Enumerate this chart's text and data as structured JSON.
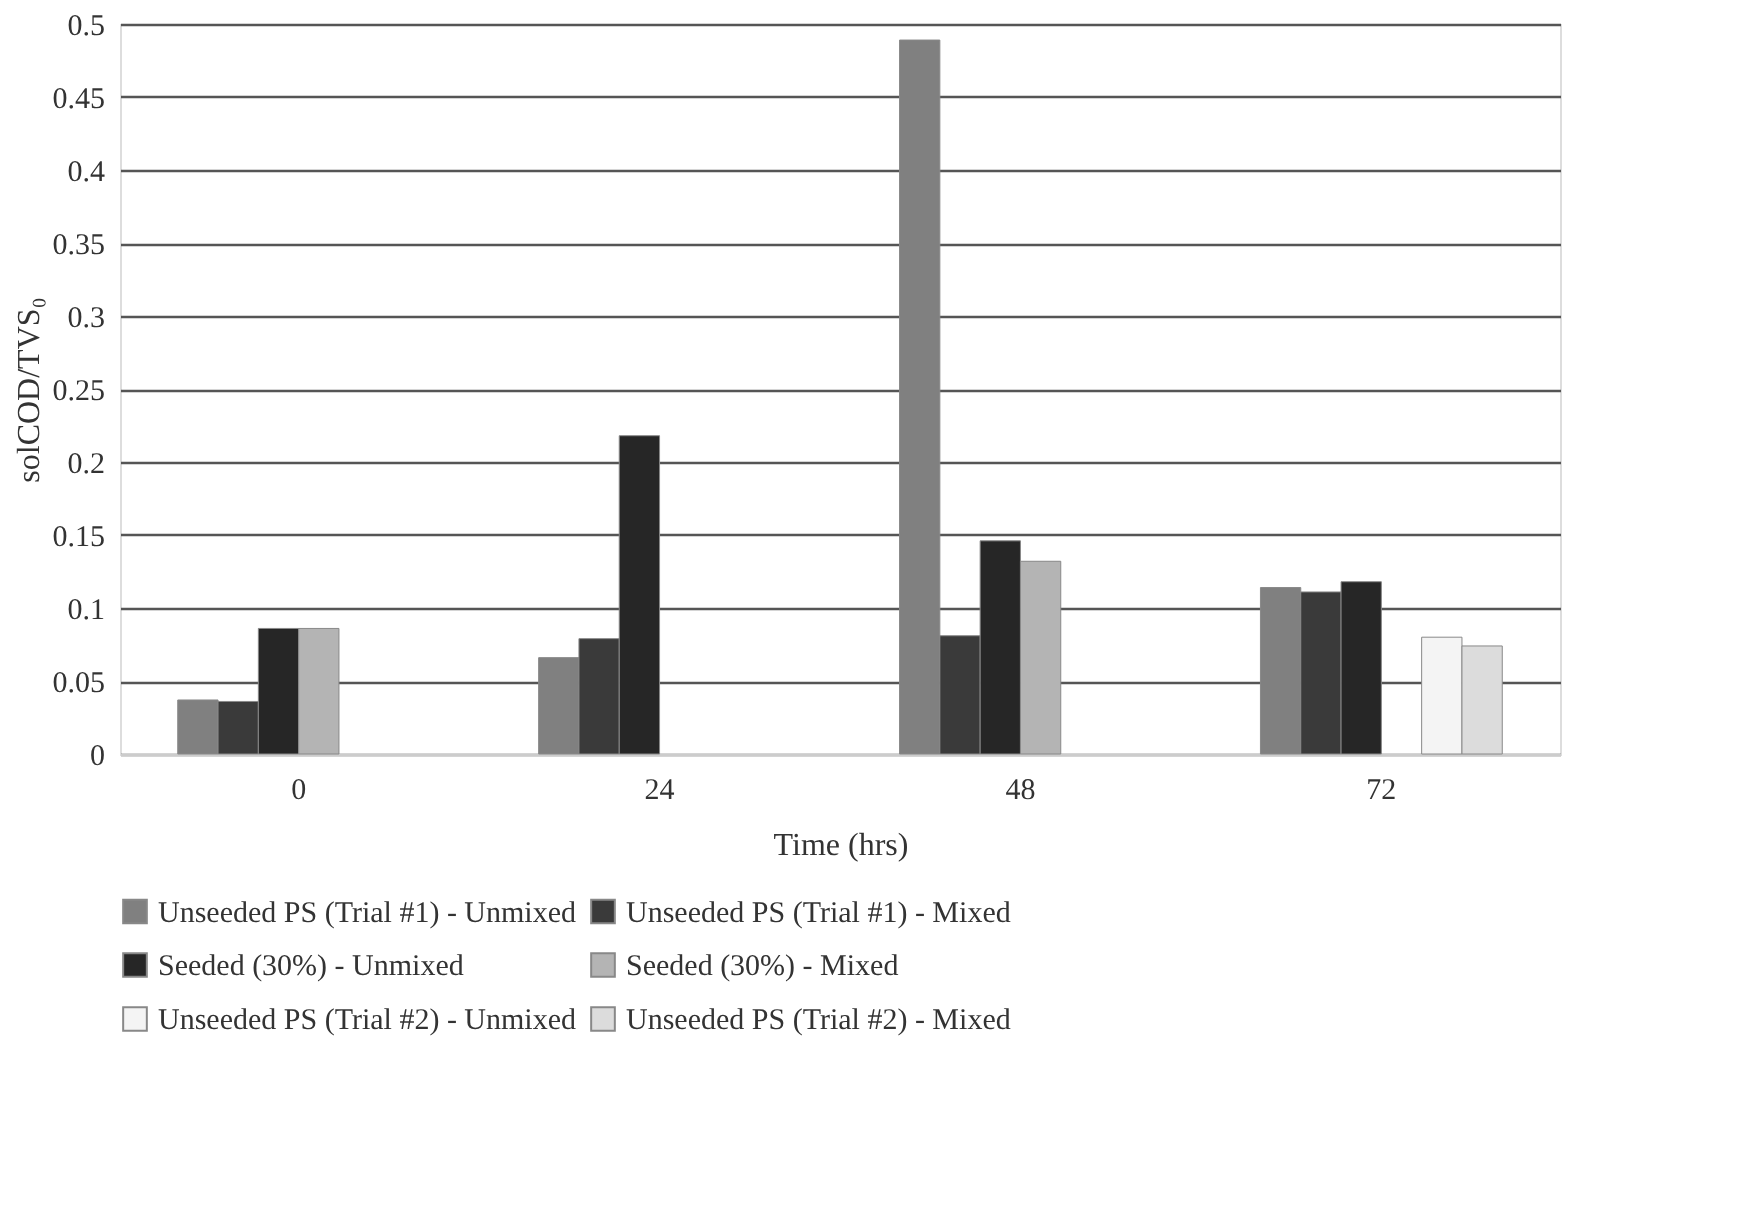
{
  "chart_data": {
    "type": "bar",
    "xlabel": "Time (hrs)",
    "ylabel": "solCOD/TVS₀",
    "categories": [
      "0",
      "24",
      "48",
      "72"
    ],
    "series": [
      {
        "name": "Unseeded PS (Trial #1) - Unmixed",
        "color": "#808080",
        "values": [
          0.037,
          0.066,
          0.489,
          0.114
        ]
      },
      {
        "name": "Unseeded PS (Trial #1) - Mixed",
        "color": "#3a3a3a",
        "values": [
          0.036,
          0.079,
          0.081,
          0.111
        ]
      },
      {
        "name": "Seeded (30%) - Unmixed",
        "color": "#262626",
        "values": [
          0.086,
          0.218,
          0.146,
          0.118
        ]
      },
      {
        "name": "Seeded (30%) - Mixed",
        "color": "#b4b4b4",
        "values": [
          0.086,
          null,
          0.132,
          null
        ]
      },
      {
        "name": "Unseeded PS (Trial #2) - Unmixed",
        "color": "#f4f4f4",
        "values": [
          null,
          null,
          null,
          0.08
        ]
      },
      {
        "name": "Unseeded PS (Trial #2) - Mixed",
        "color": "#dcdcdc",
        "values": [
          null,
          null,
          null,
          0.074
        ]
      }
    ],
    "ylim": [
      0,
      0.5
    ],
    "yticks": [
      0,
      0.05,
      0.1,
      0.15,
      0.2,
      0.25,
      0.3,
      0.35,
      0.4,
      0.45,
      0.5
    ],
    "grid": "y",
    "legend": "bottom"
  }
}
